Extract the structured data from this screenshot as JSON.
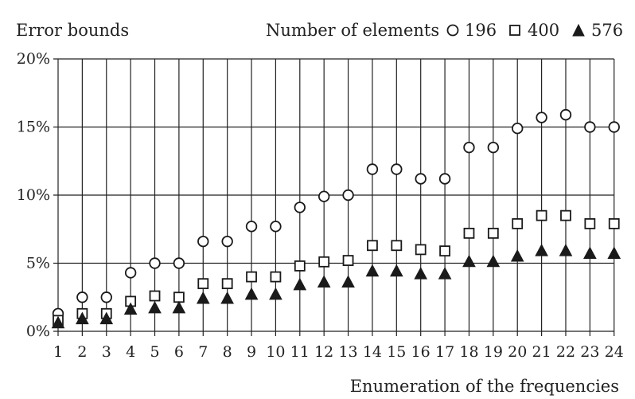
{
  "chart_data": {
    "type": "scatter",
    "ylabel": "Error bounds",
    "xlabel": "Enumeration of the frequencies",
    "legend_title": "Number of elements",
    "legend_position": "top-right",
    "categories": [
      "1",
      "2",
      "3",
      "4",
      "5",
      "6",
      "7",
      "8",
      "9",
      "10",
      "11",
      "12",
      "13",
      "14",
      "15",
      "16",
      "17",
      "18",
      "19",
      "20",
      "21",
      "22",
      "23",
      "24"
    ],
    "y_ticks": [
      "0%",
      "5%",
      "10%",
      "15%",
      "20%"
    ],
    "ylim": [
      0,
      20
    ],
    "grid": {
      "vertical": true,
      "horizontal": true
    },
    "series": [
      {
        "name": "196",
        "marker": "circle",
        "values": [
          1.3,
          2.5,
          2.5,
          4.3,
          5.0,
          5.0,
          6.6,
          6.6,
          7.7,
          7.7,
          9.1,
          9.9,
          10.0,
          11.9,
          11.9,
          11.2,
          11.2,
          13.5,
          13.5,
          14.9,
          15.7,
          15.9,
          15.0,
          15.0
        ]
      },
      {
        "name": "400",
        "marker": "square",
        "values": [
          0.8,
          1.3,
          1.3,
          2.2,
          2.6,
          2.5,
          3.5,
          3.5,
          4.0,
          4.0,
          4.8,
          5.1,
          5.2,
          6.3,
          6.3,
          6.0,
          5.9,
          7.2,
          7.2,
          7.9,
          8.5,
          8.5,
          7.9,
          7.9
        ]
      },
      {
        "name": "576",
        "marker": "triangle",
        "values": [
          0.6,
          0.9,
          0.9,
          1.6,
          1.7,
          1.7,
          2.4,
          2.4,
          2.7,
          2.7,
          3.4,
          3.6,
          3.6,
          4.4,
          4.4,
          4.2,
          4.2,
          5.1,
          5.1,
          5.5,
          5.9,
          5.9,
          5.7,
          5.7
        ]
      }
    ],
    "colors": {
      "marker_stroke": "#1a1a1a",
      "grid": "#222222",
      "fill_solid": "#1a1a1a",
      "fill_open": "#ffffff"
    }
  }
}
